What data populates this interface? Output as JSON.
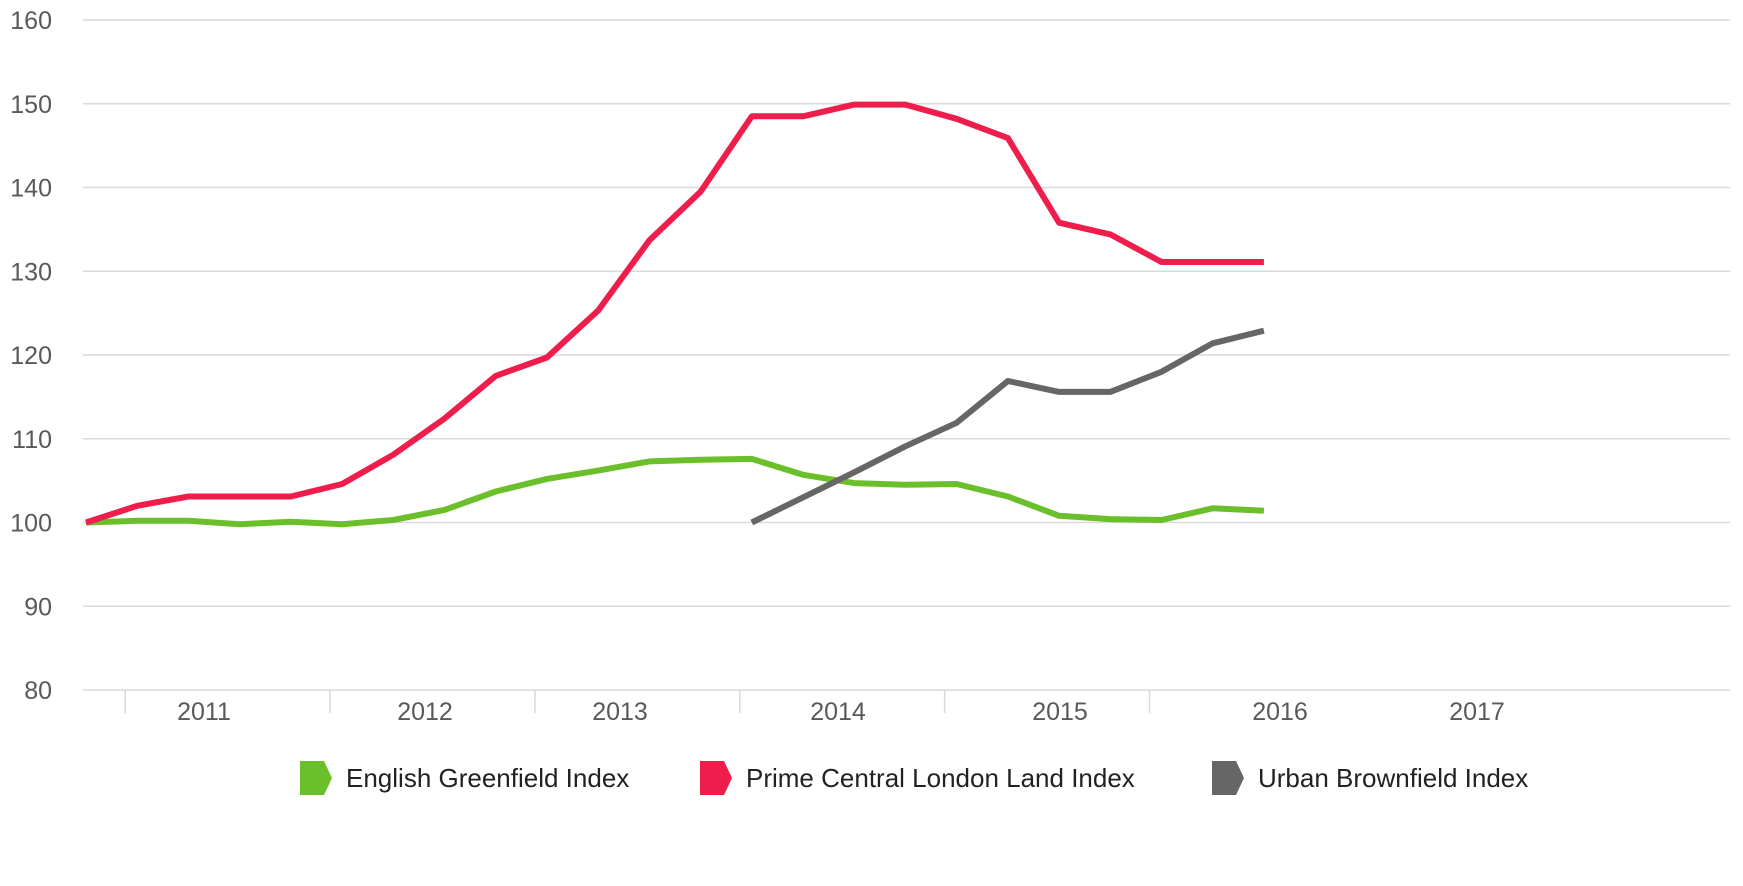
{
  "chart_data": {
    "type": "line",
    "title": "",
    "xlabel": "",
    "ylabel": "",
    "ylim": [
      80,
      160
    ],
    "yticks": [
      80,
      90,
      100,
      110,
      120,
      130,
      140,
      150,
      160
    ],
    "x_categories": [
      "2011",
      "2012",
      "2013",
      "2014",
      "2015",
      "2016",
      "2017"
    ],
    "x_range": [
      2010.5,
      2017.5
    ],
    "grid": "horizontal",
    "legend_position": "bottom-right",
    "series": [
      {
        "name": "English Greenfield Index",
        "color": "#6ABF2A",
        "points": [
          [
            2010.5,
            100.0
          ],
          [
            2010.75,
            100.2
          ],
          [
            2011.0,
            100.2
          ],
          [
            2011.25,
            99.8
          ],
          [
            2011.5,
            100.1
          ],
          [
            2011.75,
            99.8
          ],
          [
            2012.0,
            100.3
          ],
          [
            2012.25,
            101.5
          ],
          [
            2012.5,
            103.7
          ],
          [
            2012.75,
            105.2
          ],
          [
            2013.0,
            106.2
          ],
          [
            2013.25,
            107.3
          ],
          [
            2013.5,
            107.5
          ],
          [
            2013.75,
            107.6
          ],
          [
            2014.0,
            105.7
          ],
          [
            2014.25,
            104.7
          ],
          [
            2014.5,
            104.5
          ],
          [
            2014.75,
            104.6
          ],
          [
            2015.0,
            103.1
          ],
          [
            2015.25,
            100.8
          ],
          [
            2015.5,
            100.4
          ],
          [
            2015.75,
            100.3
          ],
          [
            2016.0,
            101.7
          ],
          [
            2016.25,
            101.4
          ]
        ]
      },
      {
        "name": "Prime Central London Land Index",
        "color": "#EE1D4C",
        "points": [
          [
            2010.5,
            100.0
          ],
          [
            2010.75,
            102.0
          ],
          [
            2011.0,
            103.1
          ],
          [
            2011.25,
            103.1
          ],
          [
            2011.5,
            103.1
          ],
          [
            2011.75,
            104.6
          ],
          [
            2012.0,
            108.1
          ],
          [
            2012.25,
            112.4
          ],
          [
            2012.5,
            117.5
          ],
          [
            2012.75,
            119.7
          ],
          [
            2013.0,
            125.3
          ],
          [
            2013.25,
            133.7
          ],
          [
            2013.5,
            139.5
          ],
          [
            2013.75,
            148.5
          ],
          [
            2014.0,
            148.5
          ],
          [
            2014.25,
            149.9
          ],
          [
            2014.5,
            149.9
          ],
          [
            2014.75,
            148.2
          ],
          [
            2015.0,
            145.9
          ],
          [
            2015.25,
            135.8
          ],
          [
            2015.5,
            134.4
          ],
          [
            2015.75,
            131.1
          ],
          [
            2016.0,
            131.1
          ],
          [
            2016.25,
            131.1
          ]
        ]
      },
      {
        "name": "Urban Brownfield Index",
        "color": "#666666",
        "points": [
          [
            2013.75,
            100.0
          ],
          [
            2014.0,
            103.0
          ],
          [
            2014.25,
            106.0
          ],
          [
            2014.5,
            109.1
          ],
          [
            2014.75,
            111.9
          ],
          [
            2015.0,
            116.9
          ],
          [
            2015.25,
            115.6
          ],
          [
            2015.5,
            115.6
          ],
          [
            2015.75,
            118.0
          ],
          [
            2016.0,
            121.4
          ],
          [
            2016.25,
            122.9
          ]
        ]
      }
    ]
  }
}
